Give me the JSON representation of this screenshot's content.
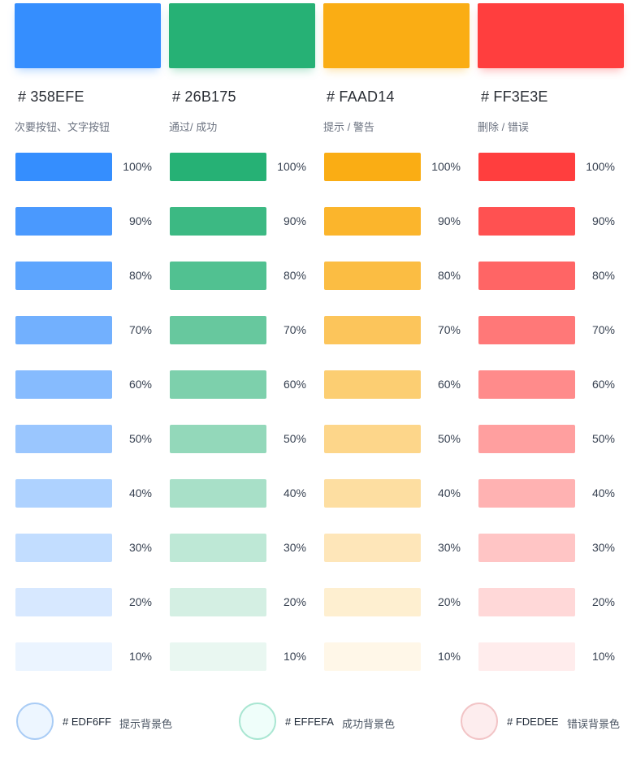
{
  "colors": [
    {
      "hex_label": "# 358EFE",
      "description": "次要按钮、文字按钮",
      "base": "#358EFE",
      "shadow": "rgba(53,142,254,0.35)",
      "shades": [
        {
          "pct": "100%",
          "color": "#358EFE"
        },
        {
          "pct": "90%",
          "color": "#4A99FE"
        },
        {
          "pct": "80%",
          "color": "#5DA5FE"
        },
        {
          "pct": "70%",
          "color": "#72B0FE"
        },
        {
          "pct": "60%",
          "color": "#86BBFE"
        },
        {
          "pct": "50%",
          "color": "#9AC6FE"
        },
        {
          "pct": "40%",
          "color": "#AED2FF"
        },
        {
          "pct": "30%",
          "color": "#C2DDFF"
        },
        {
          "pct": "20%",
          "color": "#D7E8FF"
        },
        {
          "pct": "10%",
          "color": "#EBF4FF"
        }
      ]
    },
    {
      "hex_label": "# 26B175",
      "description": "通过/ 成功",
      "base": "#26B175",
      "shadow": "rgba(38,177,117,0.35)",
      "shades": [
        {
          "pct": "100%",
          "color": "#26B175"
        },
        {
          "pct": "90%",
          "color": "#3CB983"
        },
        {
          "pct": "80%",
          "color": "#51C191"
        },
        {
          "pct": "70%",
          "color": "#67C89E"
        },
        {
          "pct": "60%",
          "color": "#7DD0AC"
        },
        {
          "pct": "50%",
          "color": "#93D8BA"
        },
        {
          "pct": "40%",
          "color": "#A8E0C8"
        },
        {
          "pct": "30%",
          "color": "#BEE8D6"
        },
        {
          "pct": "20%",
          "color": "#D4EFE3"
        },
        {
          "pct": "10%",
          "color": "#E9F7F1"
        }
      ]
    },
    {
      "hex_label": "# FAAD14",
      "description": "提示 / 警告",
      "base": "#FAAD14",
      "shadow": "rgba(250,173,20,0.35)",
      "shades": [
        {
          "pct": "100%",
          "color": "#FAAD14"
        },
        {
          "pct": "90%",
          "color": "#FBB52C"
        },
        {
          "pct": "80%",
          "color": "#FBBD43"
        },
        {
          "pct": "70%",
          "color": "#FCC55B"
        },
        {
          "pct": "60%",
          "color": "#FCCE72"
        },
        {
          "pct": "50%",
          "color": "#FDD68A"
        },
        {
          "pct": "40%",
          "color": "#FDDEA1"
        },
        {
          "pct": "30%",
          "color": "#FEE6B9"
        },
        {
          "pct": "20%",
          "color": "#FEEFD0"
        },
        {
          "pct": "10%",
          "color": "#FFF7E8"
        }
      ]
    },
    {
      "hex_label": "# FF3E3E",
      "description": "删除 / 错误",
      "base": "#FF3E3E",
      "shadow": "rgba(255,62,62,0.35)",
      "shades": [
        {
          "pct": "100%",
          "color": "#FF3E3E"
        },
        {
          "pct": "90%",
          "color": "#FF5151"
        },
        {
          "pct": "80%",
          "color": "#FF6565"
        },
        {
          "pct": "70%",
          "color": "#FF7878"
        },
        {
          "pct": "60%",
          "color": "#FF8B8B"
        },
        {
          "pct": "50%",
          "color": "#FF9F9F"
        },
        {
          "pct": "40%",
          "color": "#FFB2B2"
        },
        {
          "pct": "30%",
          "color": "#FFC5C5"
        },
        {
          "pct": "20%",
          "color": "#FFD8D8"
        },
        {
          "pct": "10%",
          "color": "#FFECEC"
        }
      ]
    }
  ],
  "backgrounds": [
    {
      "hex_label": "# EDF6FF",
      "label": "提示背景色",
      "fill": "#EDF6FF",
      "ring": "#A9CCF5"
    },
    {
      "hex_label": "# EFFEFA",
      "label": "成功背景色",
      "fill": "#EFFEFA",
      "ring": "#A9E6D2"
    },
    {
      "hex_label": "# FDEDEE",
      "label": "错误背景色",
      "fill": "#FDEDEE",
      "ring": "#F2C4C6"
    }
  ]
}
